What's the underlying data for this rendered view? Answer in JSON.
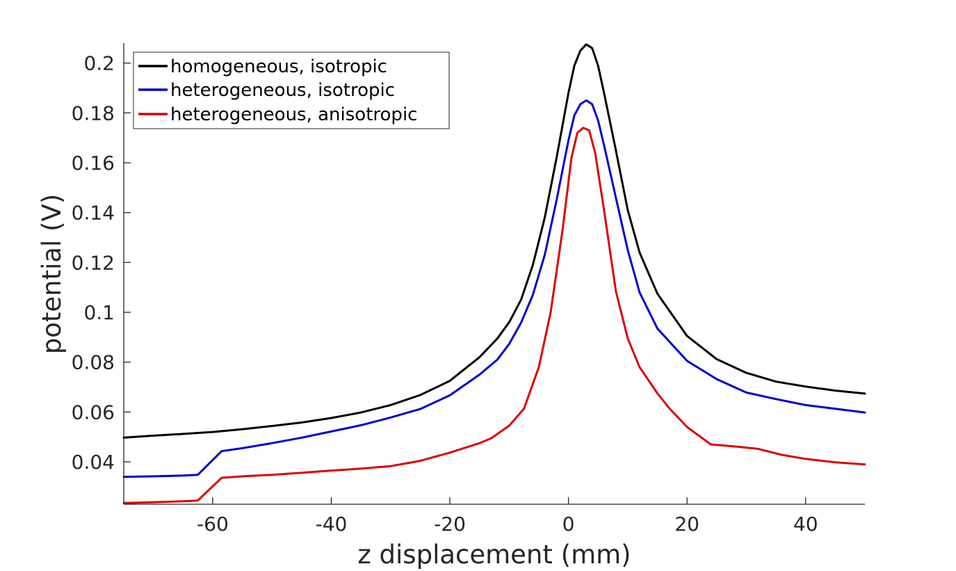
{
  "chart_data": {
    "type": "line",
    "xlabel": "z displacement (mm)",
    "ylabel": "potential (V)",
    "xlim": [
      -75,
      50
    ],
    "ylim": [
      0.023,
      0.208
    ],
    "xticks": [
      -60,
      -40,
      -20,
      0,
      20,
      40
    ],
    "xtick_labels": [
      "-60",
      "-40",
      "-20",
      "0",
      "20",
      "40"
    ],
    "yticks": [
      0.04,
      0.06,
      0.08,
      0.1,
      0.12,
      0.14,
      0.16,
      0.18,
      0.2
    ],
    "ytick_labels": [
      "0.04",
      "0.06",
      "0.08",
      "0.1",
      "0.12",
      "0.14",
      "0.16",
      "0.18",
      "0.2"
    ],
    "grid": false,
    "legend_position": "top-left",
    "series": [
      {
        "name": "homogeneous, isotropic",
        "color": "#000000",
        "x": [
          -75,
          -70,
          -65,
          -60,
          -55,
          -50,
          -45,
          -40,
          -35,
          -30,
          -25,
          -20,
          -15,
          -12,
          -10,
          -8,
          -6,
          -4,
          -2,
          0,
          1,
          2,
          3,
          4,
          5,
          6,
          8,
          10,
          12,
          15,
          20,
          25,
          30,
          35,
          40,
          45,
          50
        ],
        "y": [
          0.0497,
          0.0505,
          0.0512,
          0.052,
          0.0531,
          0.0544,
          0.0558,
          0.0576,
          0.0598,
          0.0628,
          0.0668,
          0.0725,
          0.082,
          0.0895,
          0.096,
          0.105,
          0.119,
          0.138,
          0.162,
          0.188,
          0.199,
          0.205,
          0.2075,
          0.206,
          0.199,
          0.188,
          0.165,
          0.141,
          0.124,
          0.1075,
          0.0905,
          0.0812,
          0.0757,
          0.0722,
          0.0702,
          0.0686,
          0.0674
        ]
      },
      {
        "name": "heterogeneous, isotropic",
        "color": "#0000cc",
        "x": [
          -75,
          -70,
          -65,
          -62.5,
          -58.5,
          -55,
          -50,
          -45,
          -40,
          -35,
          -30,
          -25,
          -20,
          -15,
          -12,
          -10,
          -8,
          -6,
          -4,
          -2,
          0,
          1,
          2,
          3,
          4,
          5,
          6,
          8,
          10,
          12,
          15,
          20,
          25,
          30,
          35,
          40,
          45,
          50
        ],
        "y": [
          0.034,
          0.0342,
          0.0345,
          0.0348,
          0.0443,
          0.0455,
          0.0475,
          0.0497,
          0.0522,
          0.0547,
          0.0578,
          0.0612,
          0.0667,
          0.075,
          0.081,
          0.0873,
          0.0958,
          0.107,
          0.123,
          0.145,
          0.169,
          0.179,
          0.1835,
          0.185,
          0.1835,
          0.177,
          0.167,
          0.146,
          0.125,
          0.108,
          0.0935,
          0.0805,
          0.0732,
          0.0678,
          0.0652,
          0.0628,
          0.0613,
          0.0598
        ]
      },
      {
        "name": "heterogeneous, anisotropic",
        "color": "#dd0000",
        "x": [
          -75,
          -70,
          -65,
          -62.5,
          -58.5,
          -55,
          -50,
          -45,
          -40,
          -35,
          -30,
          -25,
          -20,
          -15,
          -13,
          -10,
          -7.5,
          -5,
          -3,
          -1,
          0.5,
          1.5,
          2.5,
          3.5,
          4.5,
          6,
          8,
          10,
          12,
          15,
          17,
          20,
          24,
          28,
          32,
          36,
          40,
          45,
          50
        ],
        "y": [
          0.0235,
          0.0238,
          0.0242,
          0.0245,
          0.0336,
          0.0342,
          0.0348,
          0.0356,
          0.0365,
          0.0373,
          0.0383,
          0.0404,
          0.0437,
          0.0475,
          0.0495,
          0.0545,
          0.0613,
          0.078,
          0.1,
          0.133,
          0.162,
          0.172,
          0.174,
          0.173,
          0.164,
          0.141,
          0.1085,
          0.0895,
          0.078,
          0.0675,
          0.0615,
          0.054,
          0.047,
          0.0462,
          0.0452,
          0.0428,
          0.0412,
          0.0398,
          0.039
        ]
      }
    ]
  }
}
